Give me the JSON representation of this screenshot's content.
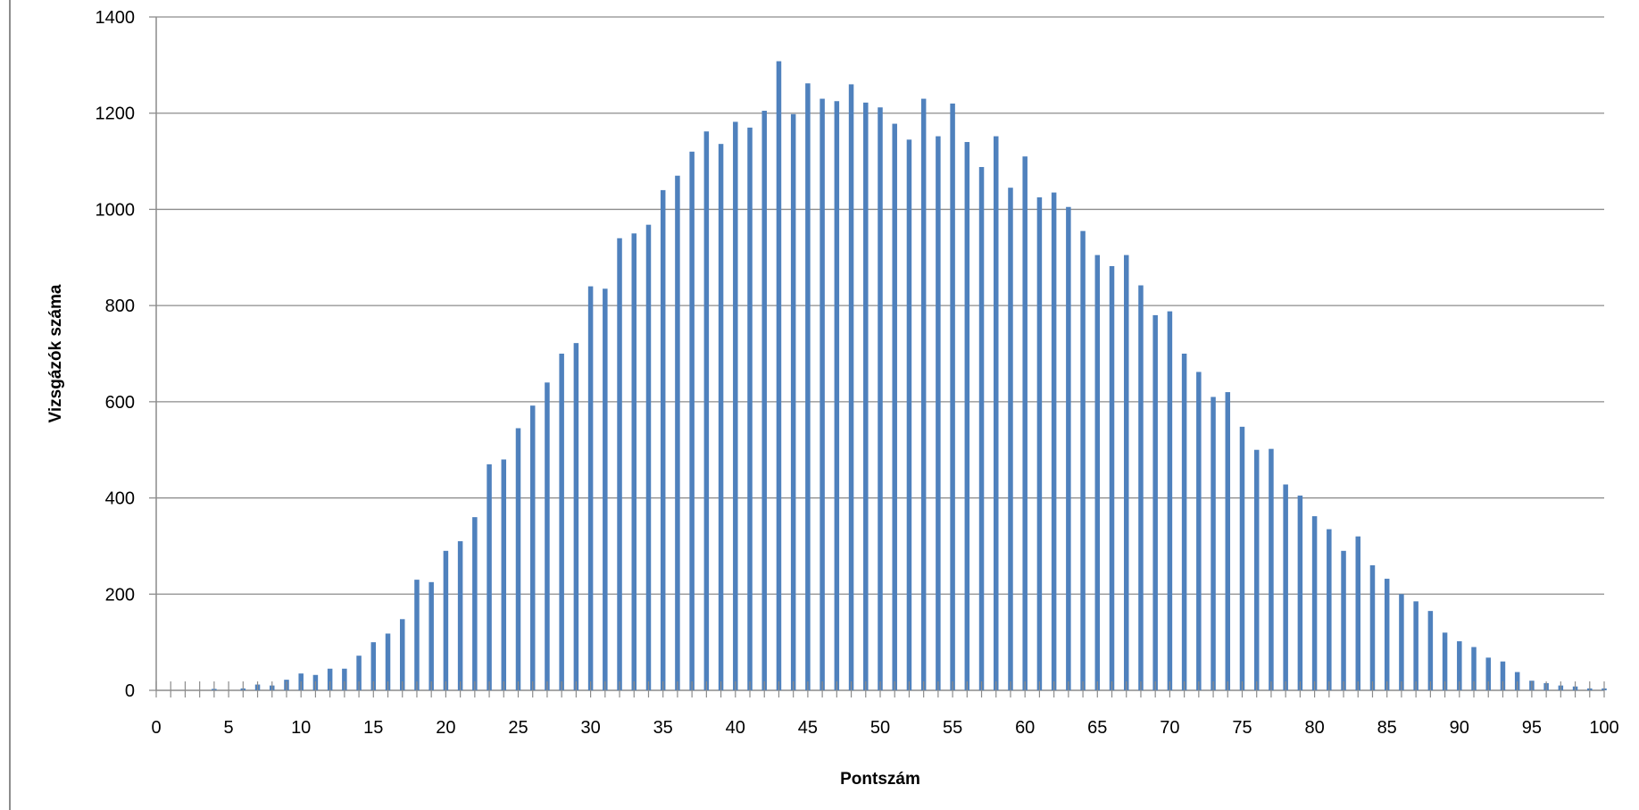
{
  "chart_data": {
    "type": "bar",
    "title": "",
    "xlabel": "Pontszám",
    "ylabel": "Vizsgázók száma",
    "xlim": [
      0,
      100
    ],
    "ylim": [
      0,
      1400
    ],
    "xticks": [
      0,
      5,
      10,
      15,
      20,
      25,
      30,
      35,
      40,
      45,
      50,
      55,
      60,
      65,
      70,
      75,
      80,
      85,
      90,
      95,
      100
    ],
    "yticks": [
      0,
      200,
      400,
      600,
      800,
      1000,
      1200,
      1400
    ],
    "grid": "horizontal",
    "legend": "none",
    "bar_color": "#4f81bd",
    "series": [
      {
        "x": [
          0,
          1,
          2,
          3,
          4,
          5,
          6,
          7,
          8,
          9,
          10,
          11,
          12,
          13,
          14,
          15,
          16,
          17,
          18,
          19,
          20,
          21,
          22,
          23,
          24,
          25,
          26,
          27,
          28,
          29,
          30,
          31,
          32,
          33,
          34,
          35,
          36,
          37,
          38,
          39,
          40,
          41,
          42,
          43,
          44,
          45,
          46,
          47,
          48,
          49,
          50,
          51,
          52,
          53,
          54,
          55,
          56,
          57,
          58,
          59,
          60,
          61,
          62,
          63,
          64,
          65,
          66,
          67,
          68,
          69,
          70,
          71,
          72,
          73,
          74,
          75,
          76,
          77,
          78,
          79,
          80,
          81,
          82,
          83,
          84,
          85,
          86,
          87,
          88,
          89,
          90,
          91,
          92,
          93,
          94,
          95,
          96,
          97,
          98,
          99,
          100
        ],
        "values": [
          0,
          0,
          0,
          0,
          3,
          0,
          4,
          12,
          10,
          22,
          35,
          32,
          45,
          45,
          72,
          100,
          118,
          148,
          230,
          225,
          290,
          310,
          360,
          470,
          480,
          545,
          592,
          640,
          700,
          722,
          840,
          835,
          940,
          950,
          968,
          1040,
          1070,
          1120,
          1162,
          1136,
          1182,
          1170,
          1205,
          1308,
          1198,
          1262,
          1230,
          1225,
          1260,
          1222,
          1212,
          1178,
          1145,
          1230,
          1152,
          1220,
          1140,
          1088,
          1152,
          1045,
          1110,
          1025,
          1035,
          1005,
          955,
          905,
          882,
          905,
          842,
          780,
          788,
          700,
          662,
          610,
          620,
          548,
          500,
          502,
          428,
          405,
          362,
          335,
          290,
          320,
          260,
          232,
          200,
          185,
          165,
          120,
          102,
          90,
          68,
          60,
          38,
          20,
          15,
          10,
          8,
          4,
          4
        ]
      }
    ]
  }
}
